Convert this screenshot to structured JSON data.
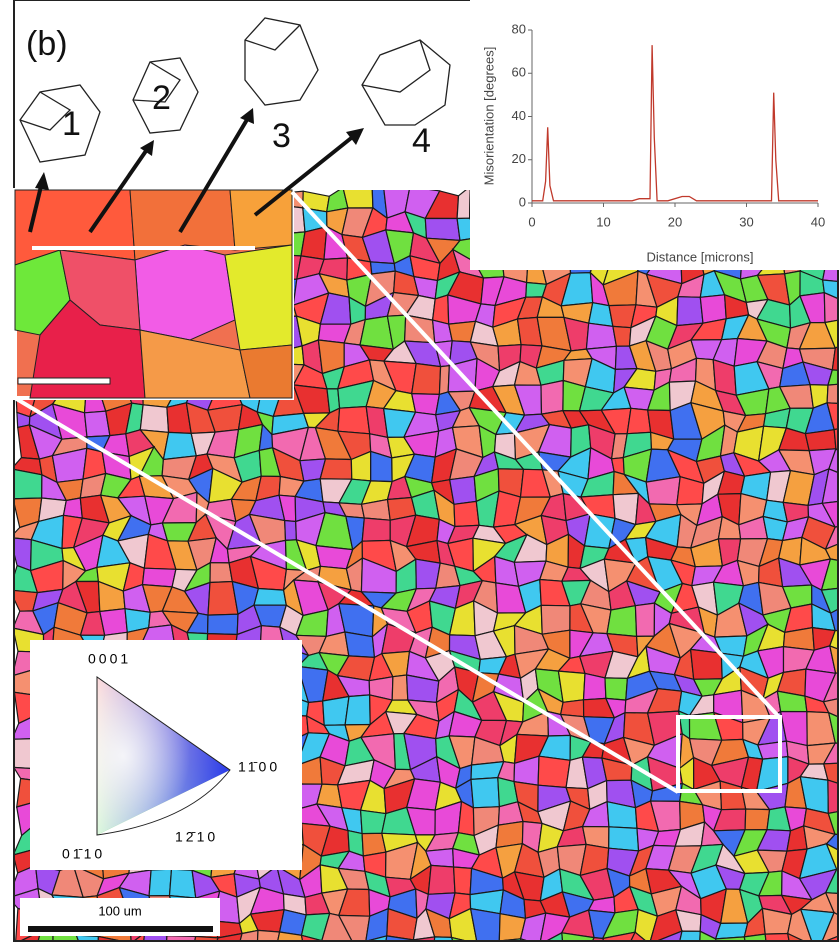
{
  "labels": {
    "panel": "(b)",
    "crystals": [
      "1",
      "2",
      "3",
      "4"
    ],
    "key": {
      "top": "0001",
      "right": "11̄00",
      "bottom_left": "01̄10",
      "bottom": "12̄10"
    },
    "scale_bar": "100 um"
  },
  "chart_data": {
    "type": "line",
    "xlabel": "Distance [microns]",
    "ylabel": "Misorientation [degrees]",
    "x": [
      0,
      1.5,
      1.9,
      2.2,
      2.5,
      3,
      8,
      14,
      15,
      16.5,
      16.8,
      17.1,
      17.5,
      19,
      21,
      22,
      23,
      26,
      29,
      33.5,
      33.8,
      34.1,
      34.5,
      36,
      40
    ],
    "series": [
      {
        "color": "#c0392b",
        "values": [
          1,
          1,
          10,
          35,
          8,
          1,
          1,
          1,
          2,
          2,
          73,
          30,
          1,
          1,
          3,
          3,
          1,
          1,
          1,
          1,
          51,
          20,
          1,
          1,
          1
        ]
      }
    ],
    "xlim": [
      0,
      40
    ],
    "xticks": [
      0,
      10,
      20,
      30,
      40
    ],
    "ylim": [
      0,
      80
    ],
    "yticks": [
      0,
      20,
      40,
      60,
      80
    ]
  }
}
